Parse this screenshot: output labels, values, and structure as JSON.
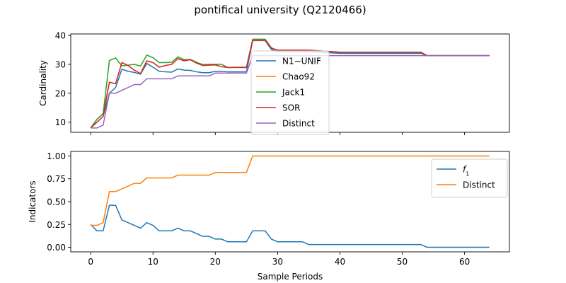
{
  "title": "pontifical university (Q2120466)",
  "chart_data": [
    {
      "type": "line",
      "ylabel": "Cardinality",
      "xlim": [
        -3.2,
        67.2
      ],
      "ylim": [
        6.5,
        40.5
      ],
      "yticks": [
        10,
        20,
        30,
        40
      ],
      "xticks": [
        0,
        10,
        20,
        30,
        40,
        50,
        60
      ],
      "legend_position": "center",
      "series": [
        {
          "name": "N1−UNIF",
          "color": "#1f77b4",
          "x": [
            0,
            1,
            2,
            3,
            4,
            5,
            6,
            7,
            8,
            9,
            10,
            11,
            12,
            13,
            14,
            15,
            16,
            17,
            18,
            19,
            20,
            21,
            22,
            23,
            24,
            25,
            26,
            27,
            28,
            29,
            30,
            35,
            40,
            45,
            50,
            53,
            54,
            55,
            60,
            64
          ],
          "y": [
            8,
            10,
            12,
            20,
            22,
            28.3,
            27.6,
            27.2,
            26.6,
            30.3,
            29,
            27.6,
            27.4,
            27.3,
            28.4,
            28,
            27.9,
            27.4,
            27.1,
            27.1,
            27.6,
            27.6,
            27.4,
            27.4,
            27.4,
            27.4,
            38.2,
            38.2,
            38.2,
            35.1,
            34.4,
            34.4,
            33.8,
            33.8,
            33.8,
            33.8,
            33,
            33,
            33,
            33
          ]
        },
        {
          "name": "Chao92",
          "color": "#ff7f0e",
          "x": [
            0,
            1,
            2,
            3,
            4,
            5,
            6,
            7,
            8,
            9,
            10,
            11,
            12,
            13,
            14,
            15,
            16,
            17,
            18,
            19,
            20,
            21,
            22,
            23,
            24,
            25,
            26,
            27,
            28,
            29,
            30,
            35,
            40,
            45,
            50,
            53,
            54,
            55,
            60,
            64
          ],
          "y": [
            8,
            11,
            13,
            23.8,
            23.3,
            30.6,
            29.6,
            28,
            26.8,
            31.2,
            30.6,
            29,
            29.6,
            30,
            32,
            31.2,
            31.6,
            30.4,
            29.6,
            29.7,
            29.8,
            29.2,
            28.9,
            28.9,
            28.9,
            28.9,
            38.3,
            38.3,
            38.3,
            35.6,
            34.9,
            34.9,
            34.2,
            34.2,
            34.2,
            34.2,
            33,
            33,
            33,
            33
          ]
        },
        {
          "name": "Jack1",
          "color": "#2ca02c",
          "x": [
            0,
            1,
            2,
            3,
            4,
            5,
            6,
            7,
            8,
            9,
            10,
            11,
            12,
            13,
            14,
            15,
            16,
            17,
            18,
            19,
            20,
            21,
            22,
            23,
            24,
            25,
            26,
            27,
            28,
            29,
            30,
            35,
            40,
            45,
            50,
            53,
            54,
            55,
            60,
            64
          ],
          "y": [
            8,
            11,
            13,
            31.3,
            32.2,
            29.5,
            29.7,
            30,
            29.4,
            33.2,
            32.3,
            30.6,
            30.6,
            30.7,
            32.6,
            31.6,
            31.7,
            30.7,
            29.9,
            30,
            30,
            30,
            28.9,
            29,
            29,
            29,
            38.7,
            38.7,
            38.7,
            35.7,
            34.8,
            34.8,
            34.1,
            34.1,
            34.1,
            34.1,
            33,
            33,
            33,
            33
          ]
        },
        {
          "name": "SOR",
          "color": "#d62728",
          "x": [
            0,
            1,
            2,
            3,
            4,
            5,
            6,
            7,
            8,
            9,
            10,
            11,
            12,
            13,
            14,
            15,
            16,
            17,
            18,
            19,
            20,
            21,
            22,
            23,
            24,
            25,
            26,
            27,
            28,
            29,
            30,
            35,
            40,
            45,
            50,
            53,
            54,
            55,
            60,
            64
          ],
          "y": [
            8,
            10,
            12,
            23.8,
            23.3,
            30.6,
            29.6,
            28,
            26.8,
            31.2,
            30.6,
            29,
            29.6,
            30,
            32,
            31.2,
            31.6,
            30.4,
            29.6,
            29.7,
            29.8,
            29.2,
            28.9,
            28.9,
            28.9,
            28.9,
            38.3,
            38.3,
            38.3,
            35.6,
            34.9,
            34.9,
            34.2,
            34.2,
            34.2,
            34.2,
            33,
            33,
            33,
            33
          ]
        },
        {
          "name": "Distinct",
          "color": "#9467bd",
          "x": [
            0,
            1,
            2,
            3,
            4,
            5,
            6,
            7,
            8,
            9,
            10,
            11,
            12,
            13,
            14,
            15,
            16,
            17,
            18,
            19,
            20,
            21,
            22,
            23,
            24,
            25,
            26,
            27,
            28,
            29,
            30,
            35,
            40,
            45,
            50,
            53,
            54,
            55,
            60,
            64
          ],
          "y": [
            8,
            8,
            9,
            20,
            20,
            21,
            22,
            23,
            23,
            25,
            25,
            25,
            25,
            25,
            26,
            26,
            26,
            26,
            26,
            26,
            27,
            27,
            27,
            27,
            27,
            27,
            33,
            33,
            33,
            33,
            33,
            33,
            33,
            33,
            33,
            33,
            33,
            33,
            33,
            33
          ]
        }
      ]
    },
    {
      "type": "line",
      "xlabel": "Sample Periods",
      "ylabel": "Indicators",
      "xlim": [
        -3.2,
        67.2
      ],
      "ylim": [
        -0.05,
        1.05
      ],
      "yticks": [
        0.0,
        0.25,
        0.5,
        0.75,
        1.0
      ],
      "ytick_labels": [
        "0.00",
        "0.25",
        "0.50",
        "0.75",
        "1.00"
      ],
      "xticks": [
        0,
        10,
        20,
        30,
        40,
        50,
        60
      ],
      "legend_position": "upper right",
      "series": [
        {
          "name": "f1",
          "color": "#1f77b4",
          "x": [
            0,
            1,
            2,
            3,
            4,
            5,
            6,
            7,
            8,
            9,
            10,
            11,
            12,
            13,
            14,
            15,
            16,
            17,
            18,
            19,
            20,
            21,
            22,
            23,
            24,
            25,
            26,
            27,
            28,
            29,
            30,
            31,
            32,
            33,
            34,
            35,
            36,
            40,
            45,
            50,
            53,
            54,
            55,
            60,
            64
          ],
          "y": [
            0.25,
            0.18,
            0.18,
            0.46,
            0.46,
            0.3,
            0.27,
            0.24,
            0.21,
            0.27,
            0.24,
            0.18,
            0.18,
            0.18,
            0.21,
            0.18,
            0.18,
            0.15,
            0.12,
            0.12,
            0.09,
            0.09,
            0.06,
            0.06,
            0.06,
            0.06,
            0.18,
            0.18,
            0.18,
            0.09,
            0.06,
            0.06,
            0.06,
            0.06,
            0.06,
            0.03,
            0.03,
            0.03,
            0.03,
            0.03,
            0.03,
            0.0,
            0.0,
            0.0,
            0.0
          ]
        },
        {
          "name": "Distinct",
          "color": "#ff7f0e",
          "x": [
            0,
            1,
            2,
            3,
            4,
            5,
            6,
            7,
            8,
            9,
            10,
            11,
            12,
            13,
            14,
            15,
            16,
            17,
            18,
            19,
            20,
            21,
            22,
            23,
            24,
            25,
            26,
            27,
            28,
            29,
            30,
            40,
            50,
            60,
            64
          ],
          "y": [
            0.24,
            0.24,
            0.27,
            0.61,
            0.61,
            0.64,
            0.67,
            0.7,
            0.7,
            0.76,
            0.76,
            0.76,
            0.76,
            0.76,
            0.79,
            0.79,
            0.79,
            0.79,
            0.79,
            0.79,
            0.82,
            0.82,
            0.82,
            0.82,
            0.82,
            0.82,
            1.0,
            1.0,
            1.0,
            1.0,
            1.0,
            1.0,
            1.0,
            1.0,
            1.0
          ]
        }
      ]
    }
  ]
}
